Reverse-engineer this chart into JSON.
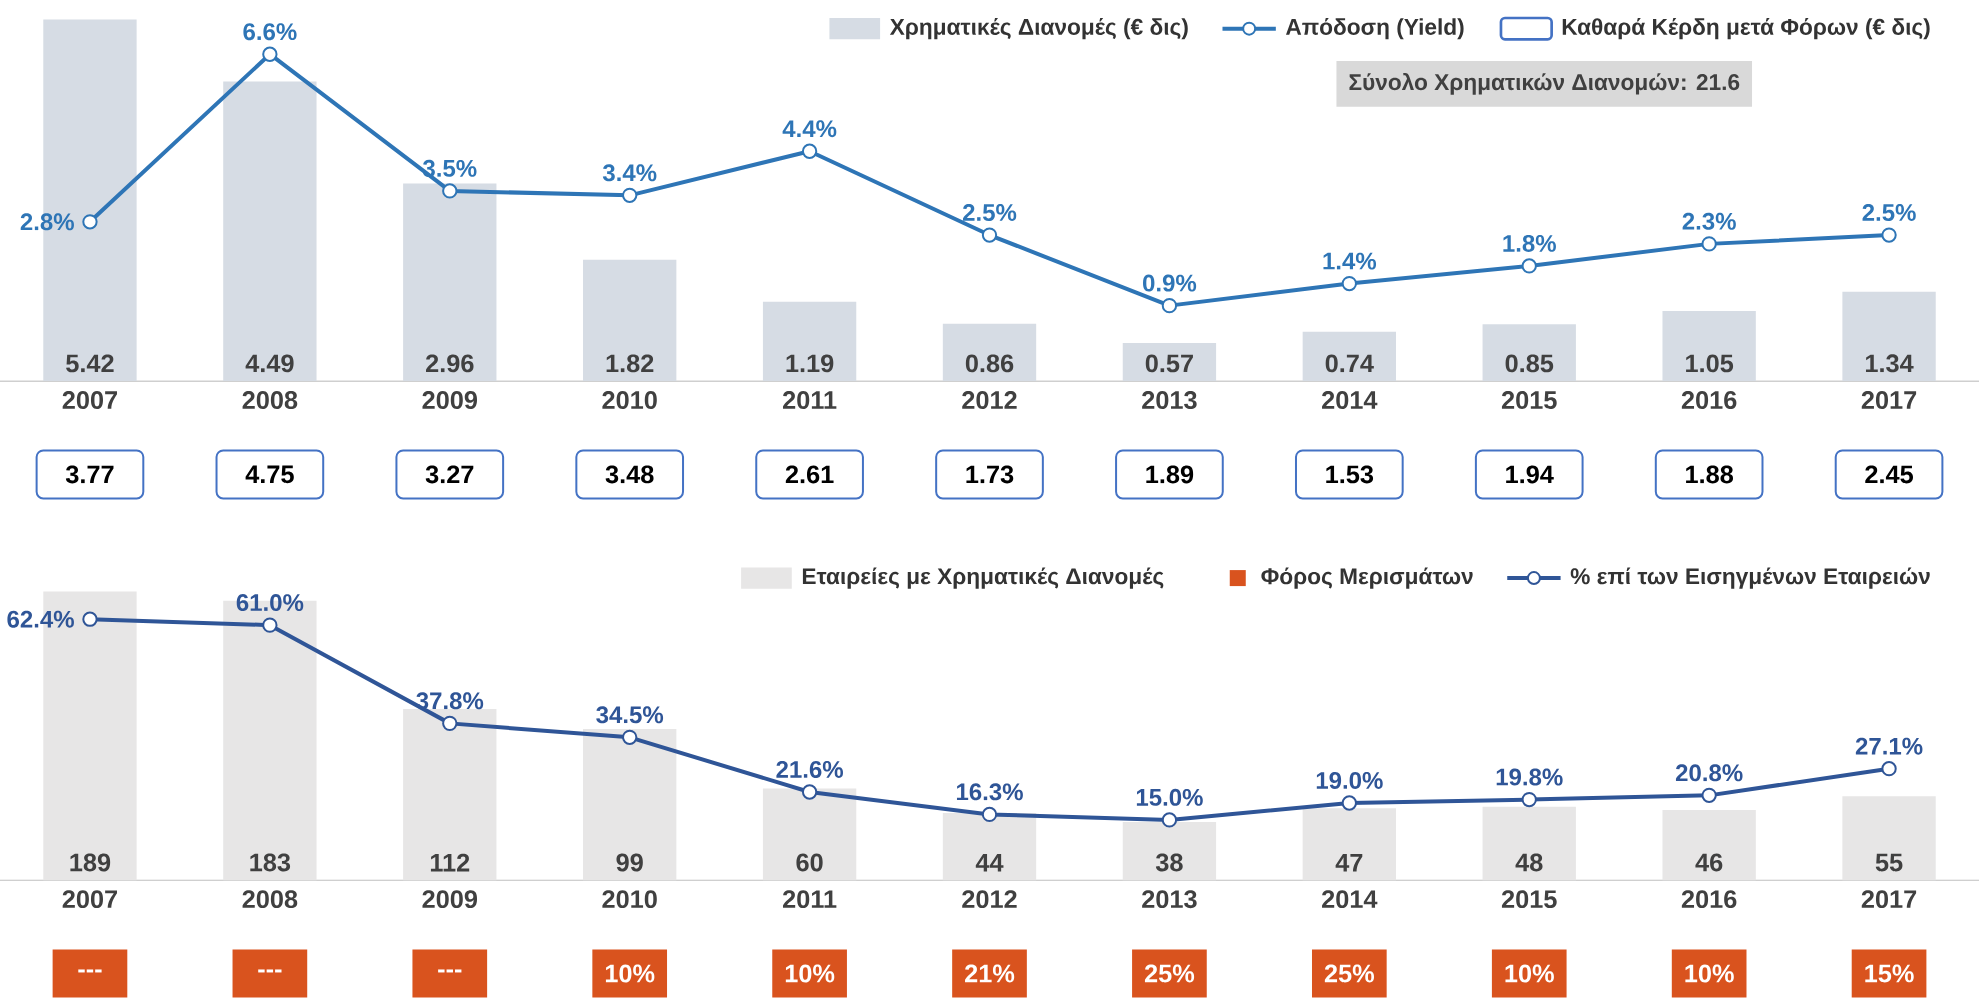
{
  "chart_data": [
    {
      "type": "bar",
      "categories": [
        "2007",
        "2008",
        "2009",
        "2010",
        "2011",
        "2012",
        "2013",
        "2014",
        "2015",
        "2016",
        "2017"
      ],
      "tick_labels": "x",
      "legend": "top right",
      "marker": "circle",
      "data_labels": true,
      "annotations": [
        "Σύνολο Χρηματικών Διανομών: 21.6"
      ],
      "series": [
        {
          "name": "Χρηματικές Διανομές (€ δις)",
          "color": "#d6dce4",
          "values": [
            5.42,
            4.49,
            2.96,
            1.82,
            1.19,
            0.86,
            0.57,
            0.74,
            0.85,
            1.05,
            1.34
          ]
        },
        {
          "name": "Απόδοση (Yield)",
          "type": "line",
          "axis": "y2",
          "color": "#2e75b6",
          "values": [
            2.8,
            6.6,
            3.5,
            3.4,
            4.4,
            2.5,
            0.9,
            1.4,
            1.8,
            2.3,
            2.5
          ],
          "value_labels": [
            "2.8%",
            "6.6%",
            "3.5%",
            "3.4%",
            "4.4%",
            "2.5%",
            "0.9%",
            "1.4%",
            "1.8%",
            "2.3%",
            "2.5%"
          ]
        },
        {
          "name": "Καθαρά Κέρδη μετά Φόρων (€ δις)",
          "type": "other",
          "color": "#4472c4",
          "values": [
            null,
            null,
            null,
            null,
            null,
            null,
            null,
            null,
            null,
            null,
            null
          ],
          "value_labels": [
            "3.77",
            "4.75",
            "3.27",
            "3.48",
            "2.61",
            "1.73",
            "1.89",
            "1.53",
            "1.94",
            "1.88",
            "2.45"
          ]
        }
      ]
    },
    {
      "type": "bar",
      "categories": [
        "2007",
        "2008",
        "2009",
        "2010",
        "2011",
        "2012",
        "2013",
        "2014",
        "2015",
        "2016",
        "2017"
      ],
      "tick_labels": "x",
      "legend": "top right",
      "marker": "circle",
      "data_labels": true,
      "series": [
        {
          "name": "Εταιρείες με Χρηματικές Διανομές",
          "color": "#e7e6e6",
          "values": [
            189,
            183,
            112,
            99,
            60,
            44,
            38,
            47,
            48,
            46,
            55
          ]
        },
        {
          "name": "Φόρος Μερισμάτων",
          "type": "other",
          "marker": "square",
          "color": "#d9531e",
          "values": [
            null,
            null,
            null,
            null,
            null,
            null,
            null,
            null,
            null,
            null,
            null
          ],
          "value_labels": [
            "---",
            "---",
            "---",
            "10%",
            "10%",
            "21%",
            "25%",
            "25%",
            "10%",
            "10%",
            "15%"
          ]
        },
        {
          "name": "% επί των Εισηγμένων Εταιρειών",
          "type": "line",
          "axis": "y2",
          "color": "#2f5597",
          "values": [
            62.4,
            61.0,
            37.8,
            34.5,
            21.6,
            16.3,
            15.0,
            19.0,
            19.8,
            20.8,
            27.1
          ],
          "value_labels": [
            "62.4%",
            "61.0%",
            "37.8%",
            "34.5%",
            "21.6%",
            "16.3%",
            "15.0%",
            "19.0%",
            "19.8%",
            "20.8%",
            "27.1%"
          ]
        }
      ]
    }
  ]
}
